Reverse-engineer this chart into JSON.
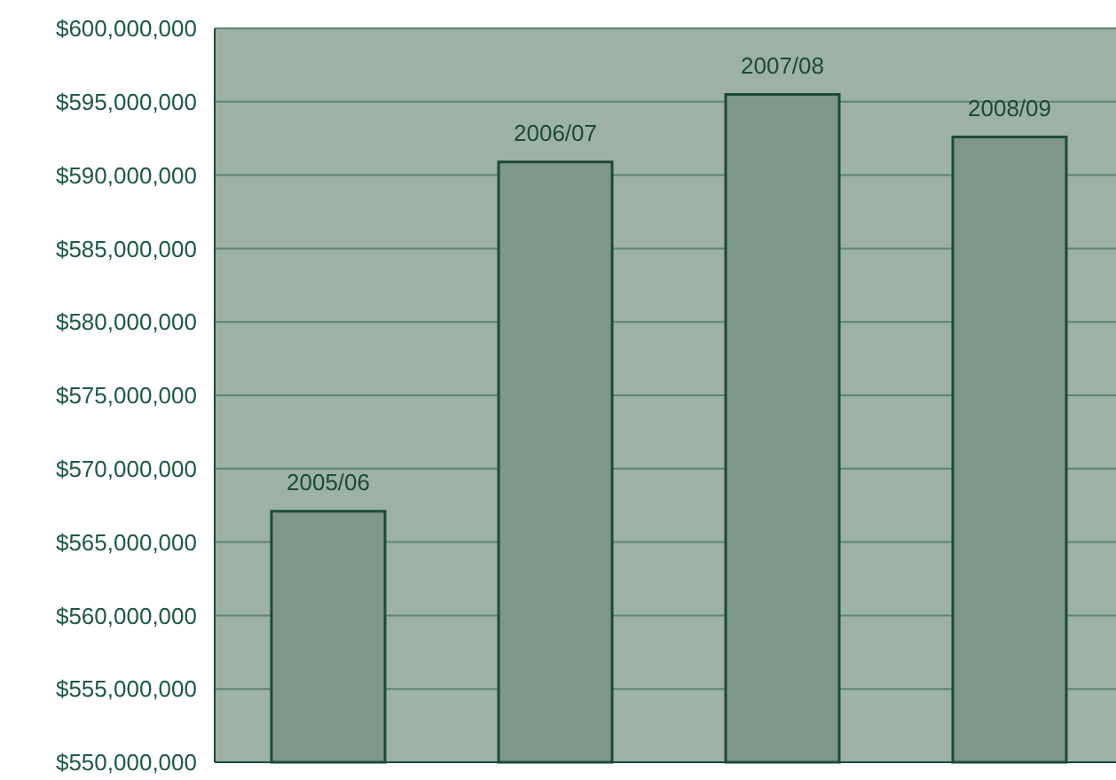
{
  "chart_data": {
    "type": "bar",
    "categories": [
      "2005/06",
      "2006/07",
      "2007/08",
      "2008/09"
    ],
    "values": [
      567100000,
      590900000,
      595500000,
      592600000
    ],
    "color": "#7f978a",
    "ylim": [
      550000000,
      600000000
    ],
    "yticks": [
      {
        "value": 550000000,
        "label": "$550,000,000"
      },
      {
        "value": 555000000,
        "label": "$555,000,000"
      },
      {
        "value": 560000000,
        "label": "$560,000,000"
      },
      {
        "value": 565000000,
        "label": "$565,000,000"
      },
      {
        "value": 570000000,
        "label": "$570,000,000"
      },
      {
        "value": 575000000,
        "label": "$575,000,000"
      },
      {
        "value": 580000000,
        "label": "$580,000,000"
      },
      {
        "value": 585000000,
        "label": "$585,000,000"
      },
      {
        "value": 590000000,
        "label": "$590,000,000"
      },
      {
        "value": 595000000,
        "label": "$595,000,000"
      },
      {
        "value": 600000000,
        "label": "$600,000,000"
      }
    ],
    "grid": "y"
  }
}
